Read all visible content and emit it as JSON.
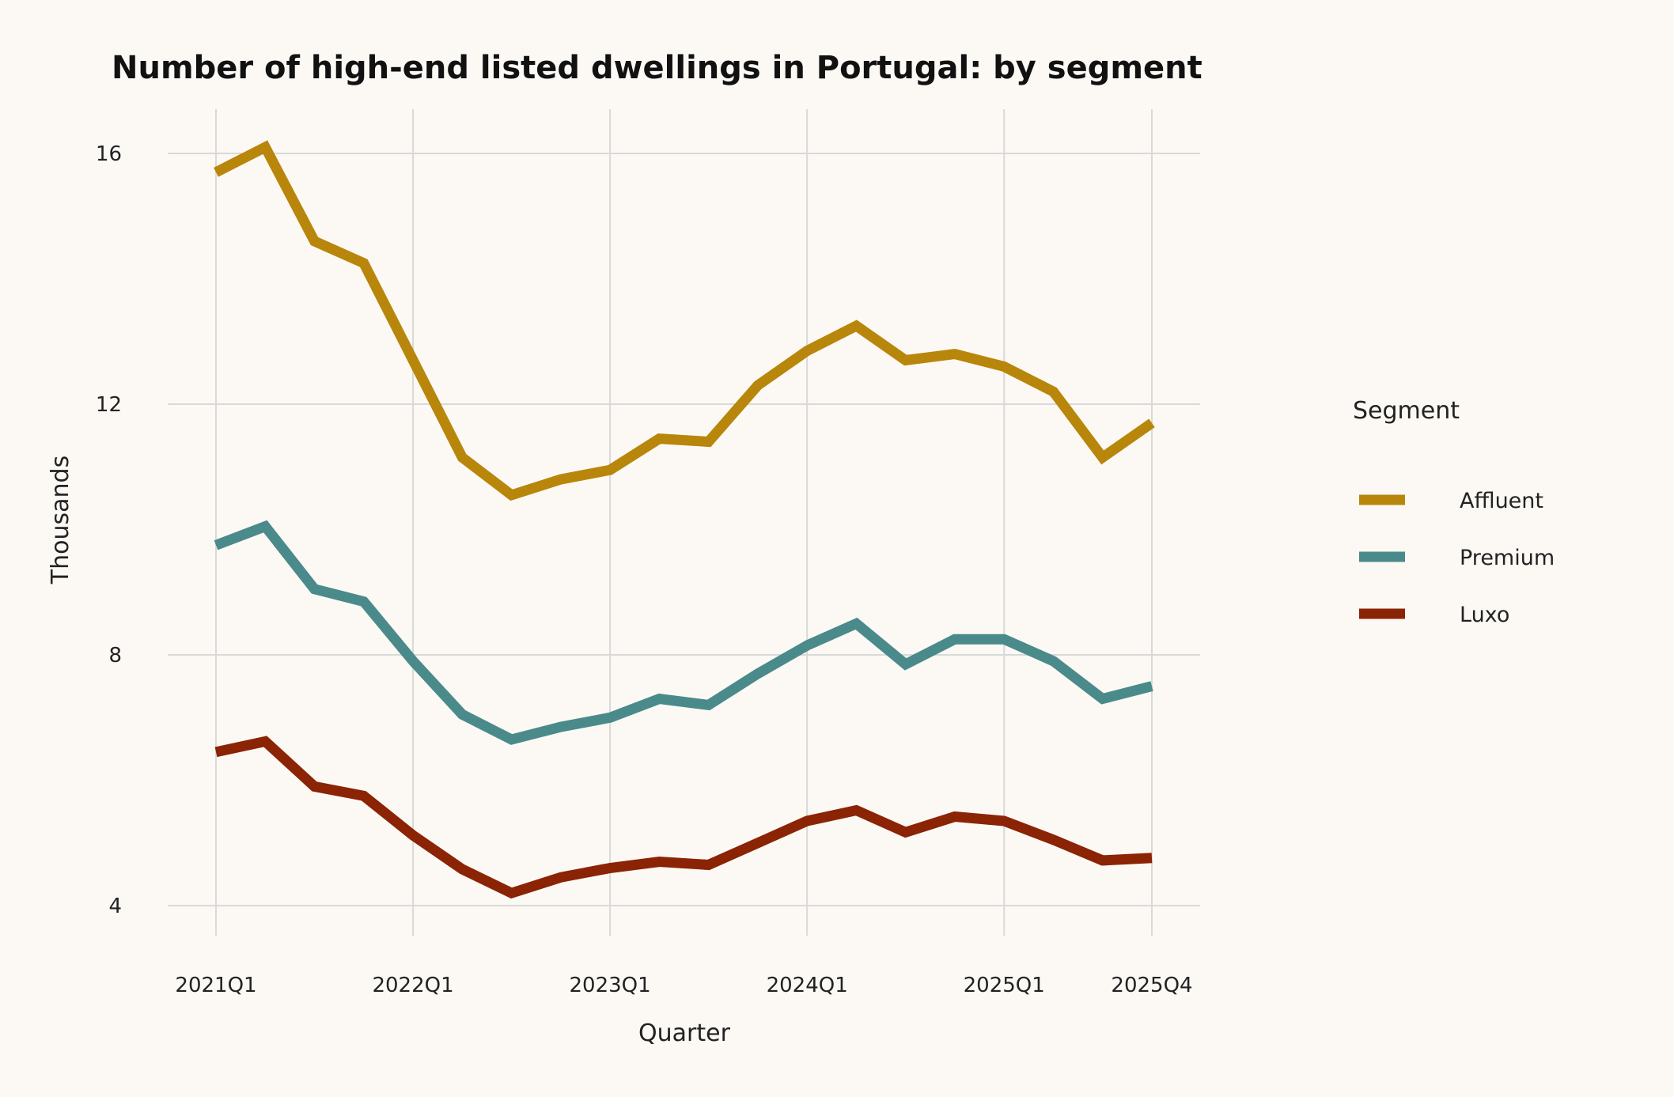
{
  "chart_data": {
    "type": "line",
    "title": "Number of high-end listed dwellings in Portugal: by segment",
    "xlabel": "Quarter",
    "ylabel": "Thousands",
    "x": [
      "2021Q1",
      "2021Q2",
      "2021Q3",
      "2021Q4",
      "2022Q1",
      "2022Q2",
      "2022Q3",
      "2022Q4",
      "2023Q1",
      "2023Q2",
      "2023Q3",
      "2023Q4",
      "2024Q1",
      "2024Q2",
      "2024Q3",
      "2024Q4",
      "2025Q1",
      "2025Q2",
      "2025Q3",
      "2025Q4"
    ],
    "x_ticks": [
      "2021Q1",
      "2022Q1",
      "2023Q1",
      "2024Q1",
      "2025Q1",
      "2025Q4"
    ],
    "y_ticks": [
      4,
      8,
      12,
      16
    ],
    "ylim": [
      3.5,
      16.7
    ],
    "grid": true,
    "legend": {
      "title": "Segment",
      "position": "right"
    },
    "series": [
      {
        "name": "Affluent",
        "color": "#b8860b",
        "values": [
          15.7,
          16.1,
          14.6,
          14.25,
          12.7,
          11.15,
          10.55,
          10.8,
          10.95,
          11.45,
          11.4,
          12.3,
          12.85,
          13.25,
          12.7,
          12.8,
          12.6,
          12.2,
          11.15,
          11.7
        ]
      },
      {
        "name": "Premium",
        "color": "#4a8a8a",
        "values": [
          9.75,
          10.05,
          9.05,
          8.85,
          7.9,
          7.05,
          6.65,
          6.85,
          7.0,
          7.3,
          7.2,
          7.7,
          8.15,
          8.5,
          7.85,
          8.25,
          8.25,
          7.9,
          7.3,
          7.5
        ]
      },
      {
        "name": "Luxo",
        "color": "#8b2305",
        "values": [
          6.45,
          6.62,
          5.9,
          5.75,
          5.12,
          4.58,
          4.2,
          4.45,
          4.6,
          4.7,
          4.65,
          5.0,
          5.35,
          5.52,
          5.17,
          5.42,
          5.35,
          5.05,
          4.72,
          4.76
        ]
      }
    ]
  }
}
